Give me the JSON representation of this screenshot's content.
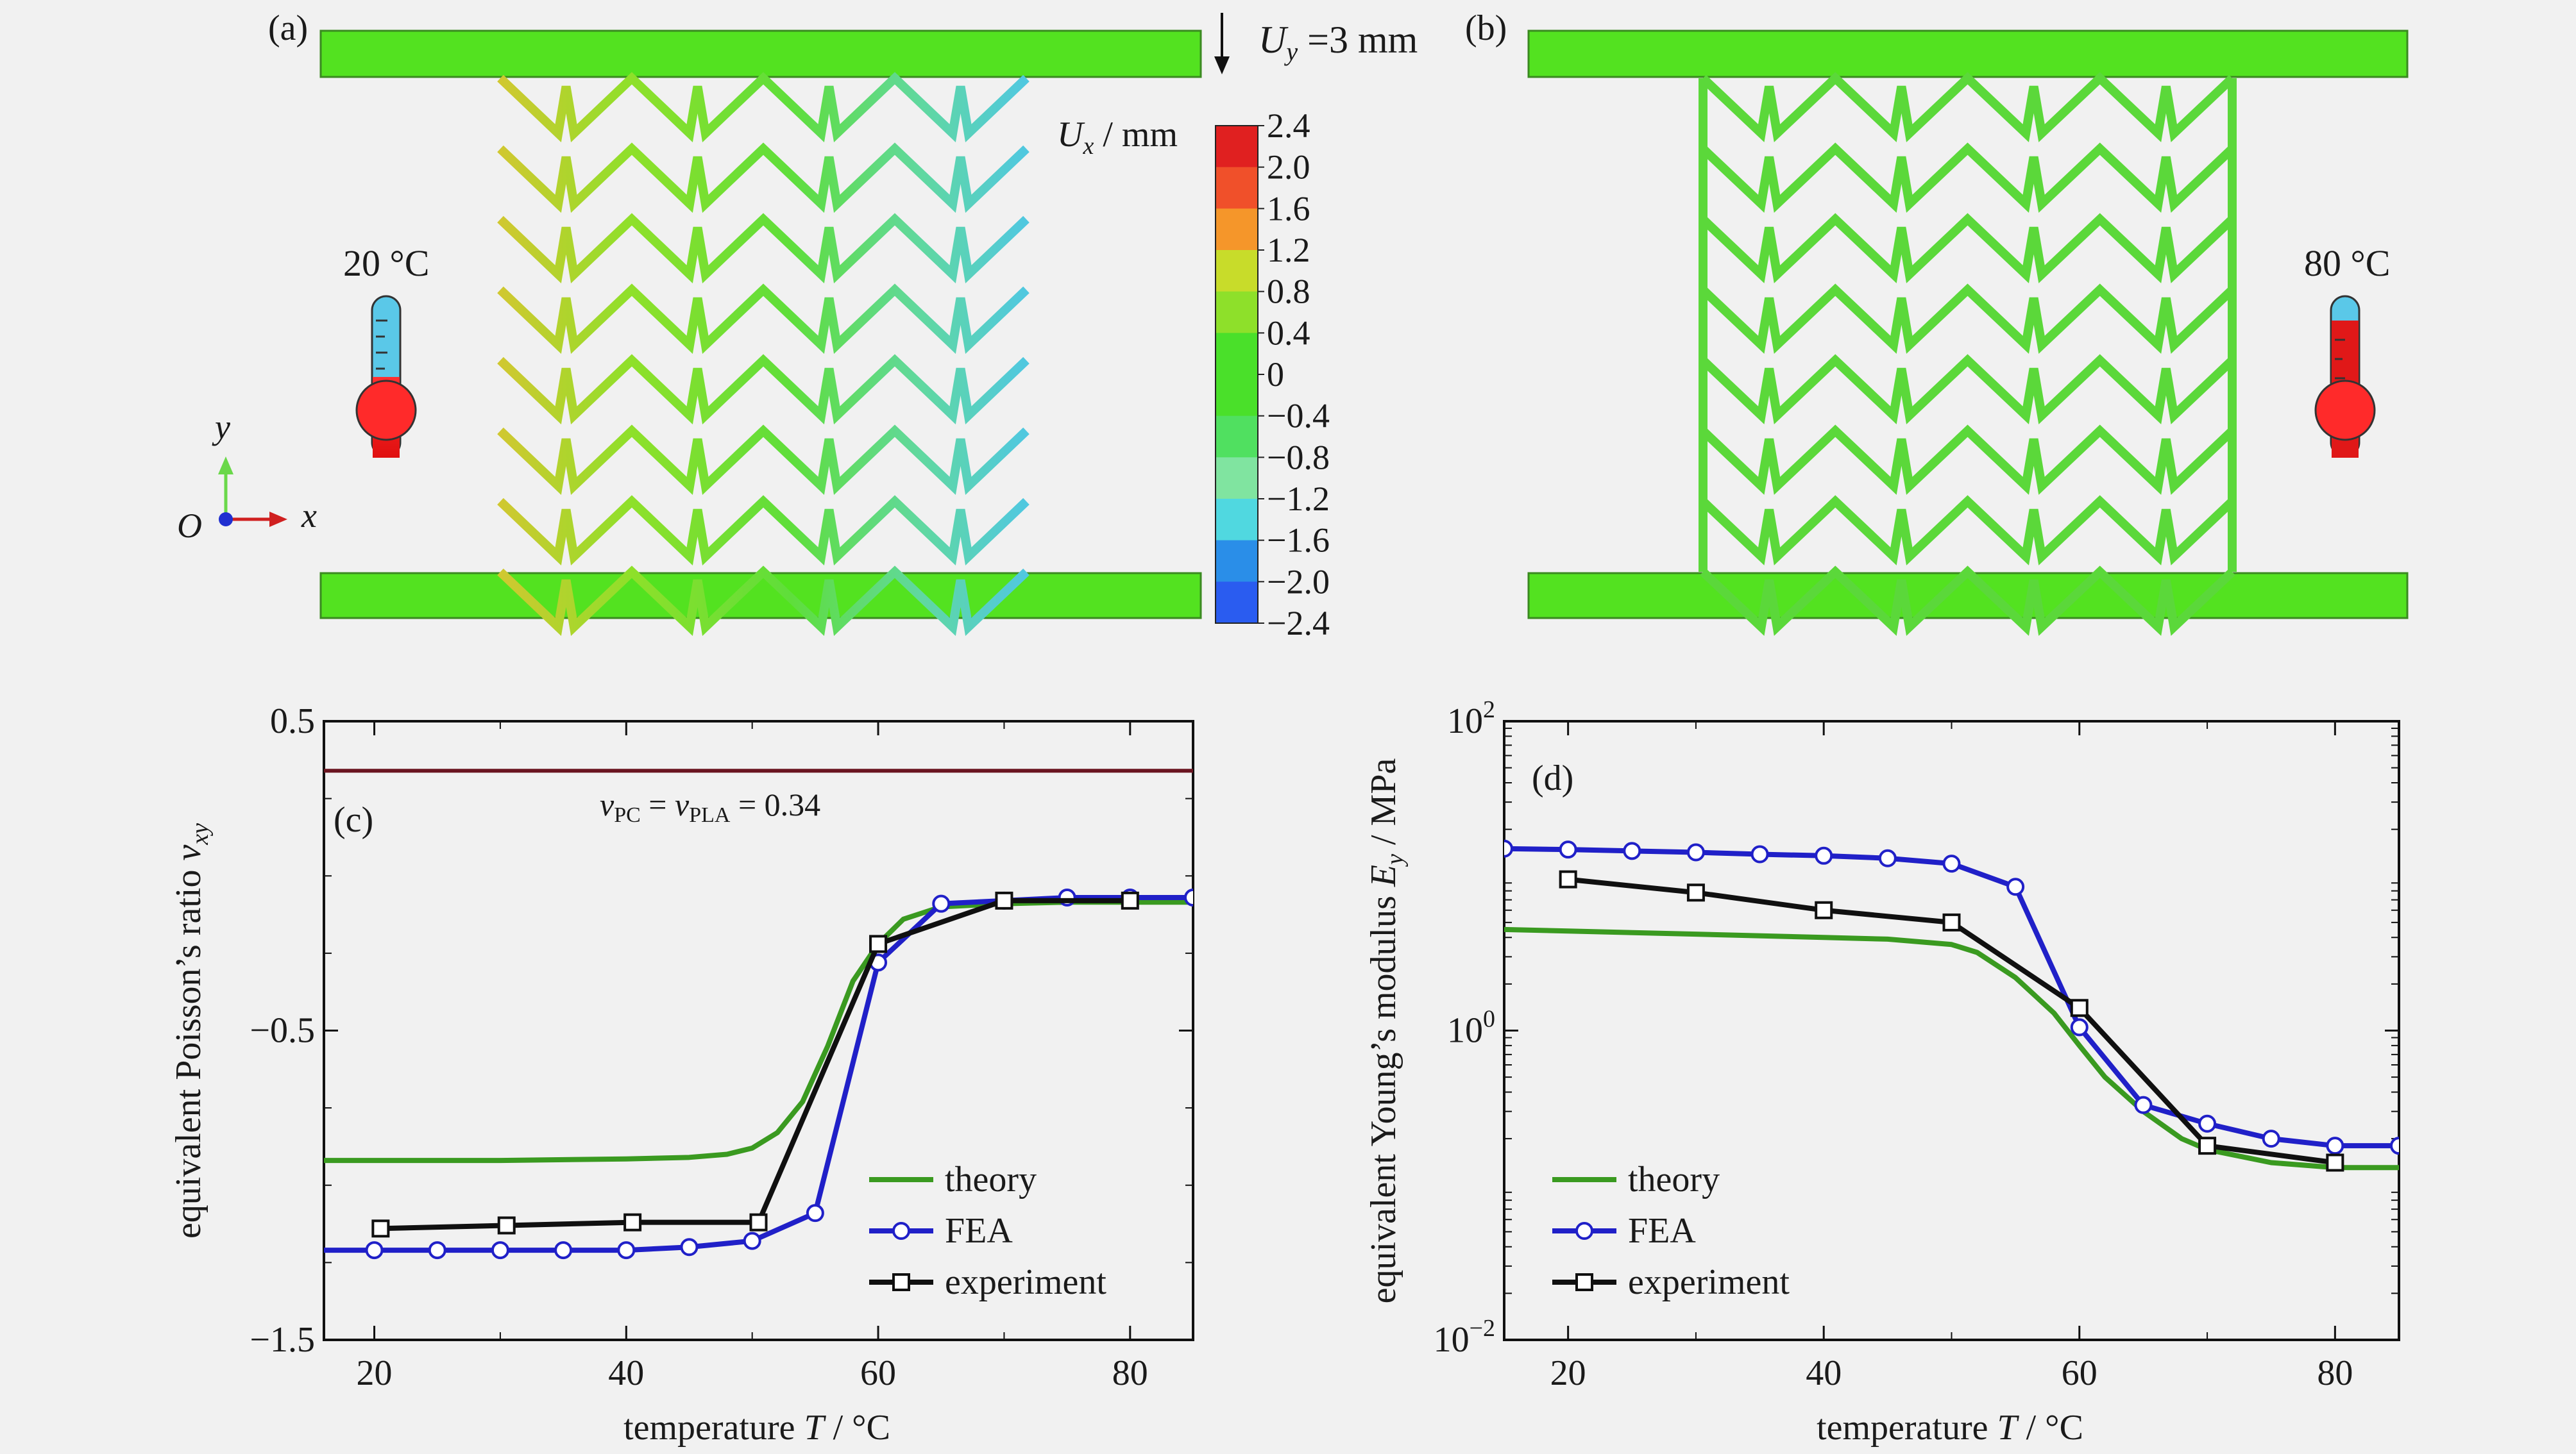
{
  "panels": {
    "a": {
      "label": "(a)",
      "load_label": "U",
      "load_sub": "y",
      "load_value": " =3 mm",
      "temperature": "20 °C",
      "colorbar": {
        "title_var": "U",
        "title_sub": "x",
        "title_unit": " / mm",
        "ticks": [
          "2.4",
          "2.0",
          "1.6",
          "1.2",
          "0.8",
          "0.4",
          "0",
          "−0.4",
          "−0.8",
          "−1.2",
          "−1.6",
          "−2.0",
          "−2.4"
        ],
        "colors": [
          "#e02020",
          "#f0502a",
          "#f5962a",
          "#c8dc2a",
          "#8ee02a",
          "#4ae02a",
          "#4ae02a",
          "#50e060",
          "#80e4a0",
          "#50d8e0",
          "#2a8ee8",
          "#2a5cf0"
        ]
      },
      "axes": {
        "y": "y",
        "x": "x",
        "origin": "O"
      },
      "colors": {
        "plate": "#53e220",
        "lattice": "#5bd83a"
      }
    },
    "b": {
      "label": "(b)",
      "temperature": "80 °C"
    }
  },
  "chart_data": [
    {
      "type": "line",
      "panel_label": "(c)",
      "xlabel": "temperature T / °C",
      "ylabel": "equivalent Poisson’s ratio ν_xy",
      "xlim": [
        16,
        85
      ],
      "ylim": [
        -1.5,
        0.5
      ],
      "xticks": [
        "20",
        "40",
        "60",
        "80"
      ],
      "xtick_values": [
        20,
        40,
        60,
        80
      ],
      "yticks": [
        "0.5",
        "−0.5",
        "−1.5"
      ],
      "ytick_values": [
        0.5,
        -0.5,
        -1.5
      ],
      "annotation": "ν_PC = ν_PLA = 0.34",
      "reference_line": 0.34,
      "legend": [
        "theory",
        "FEA",
        "experiment"
      ],
      "legend_position": "bottom-right",
      "series": [
        {
          "name": "theory",
          "color": "#3a9a20",
          "marker": "none",
          "x": [
            16,
            20,
            30,
            40,
            45,
            48,
            50,
            52,
            54,
            56,
            58,
            60,
            62,
            65,
            70,
            75,
            80,
            85
          ],
          "y": [
            -0.92,
            -0.92,
            -0.92,
            -0.915,
            -0.91,
            -0.9,
            -0.88,
            -0.83,
            -0.73,
            -0.55,
            -0.34,
            -0.22,
            -0.14,
            -0.1,
            -0.09,
            -0.085,
            -0.085,
            -0.085
          ]
        },
        {
          "name": "FEA",
          "color": "#2020c8",
          "marker": "circle",
          "x": [
            15,
            20,
            25,
            30,
            35,
            40,
            45,
            50,
            55,
            60,
            65,
            70,
            75,
            80,
            85
          ],
          "y": [
            -1.21,
            -1.21,
            -1.21,
            -1.21,
            -1.21,
            -1.21,
            -1.2,
            -1.18,
            -1.09,
            -0.28,
            -0.09,
            -0.08,
            -0.07,
            -0.07,
            -0.07
          ]
        },
        {
          "name": "experiment",
          "color": "#101010",
          "marker": "square",
          "x": [
            20.5,
            30.5,
            40.5,
            50.5,
            60,
            70,
            80
          ],
          "y": [
            -1.14,
            -1.13,
            -1.12,
            -1.12,
            -0.22,
            -0.08,
            -0.08
          ]
        }
      ]
    },
    {
      "type": "line",
      "panel_label": "(d)",
      "xlabel": "temperature T / °C",
      "ylabel": "equivalent Young’s modulus E_y / MPa",
      "xlim": [
        15,
        85
      ],
      "ylim": [
        0.01,
        100
      ],
      "yscale": "log",
      "xticks": [
        "20",
        "40",
        "60",
        "80"
      ],
      "xtick_values": [
        20,
        40,
        60,
        80
      ],
      "yticks": [
        "10",
        "10",
        "10"
      ],
      "ytick_exponents": [
        "2",
        "0",
        "−2"
      ],
      "ytick_values": [
        100,
        1,
        0.01
      ],
      "legend": [
        "theory",
        "FEA",
        "experiment"
      ],
      "legend_position": "bottom-left",
      "series": [
        {
          "name": "theory",
          "color": "#3a9a20",
          "marker": "none",
          "x": [
            15,
            20,
            30,
            40,
            45,
            50,
            52,
            55,
            58,
            60,
            62,
            65,
            68,
            70,
            75,
            80,
            85
          ],
          "y": [
            4.5,
            4.4,
            4.2,
            4.0,
            3.9,
            3.6,
            3.2,
            2.2,
            1.3,
            0.8,
            0.5,
            0.3,
            0.2,
            0.17,
            0.14,
            0.13,
            0.13
          ]
        },
        {
          "name": "FEA",
          "color": "#2020c8",
          "marker": "circle",
          "x": [
            15,
            20,
            25,
            30,
            35,
            40,
            45,
            50,
            55,
            60,
            65,
            70,
            75,
            80,
            85
          ],
          "y": [
            15,
            14.8,
            14.5,
            14.2,
            13.8,
            13.5,
            13,
            12,
            8.5,
            1.05,
            0.33,
            0.25,
            0.2,
            0.18,
            0.18
          ]
        },
        {
          "name": "experiment",
          "color": "#101010",
          "marker": "square",
          "x": [
            20,
            30,
            40,
            50,
            60,
            70,
            80
          ],
          "y": [
            9.5,
            7.8,
            6.0,
            5.0,
            1.4,
            0.18,
            0.14
          ]
        }
      ]
    }
  ]
}
